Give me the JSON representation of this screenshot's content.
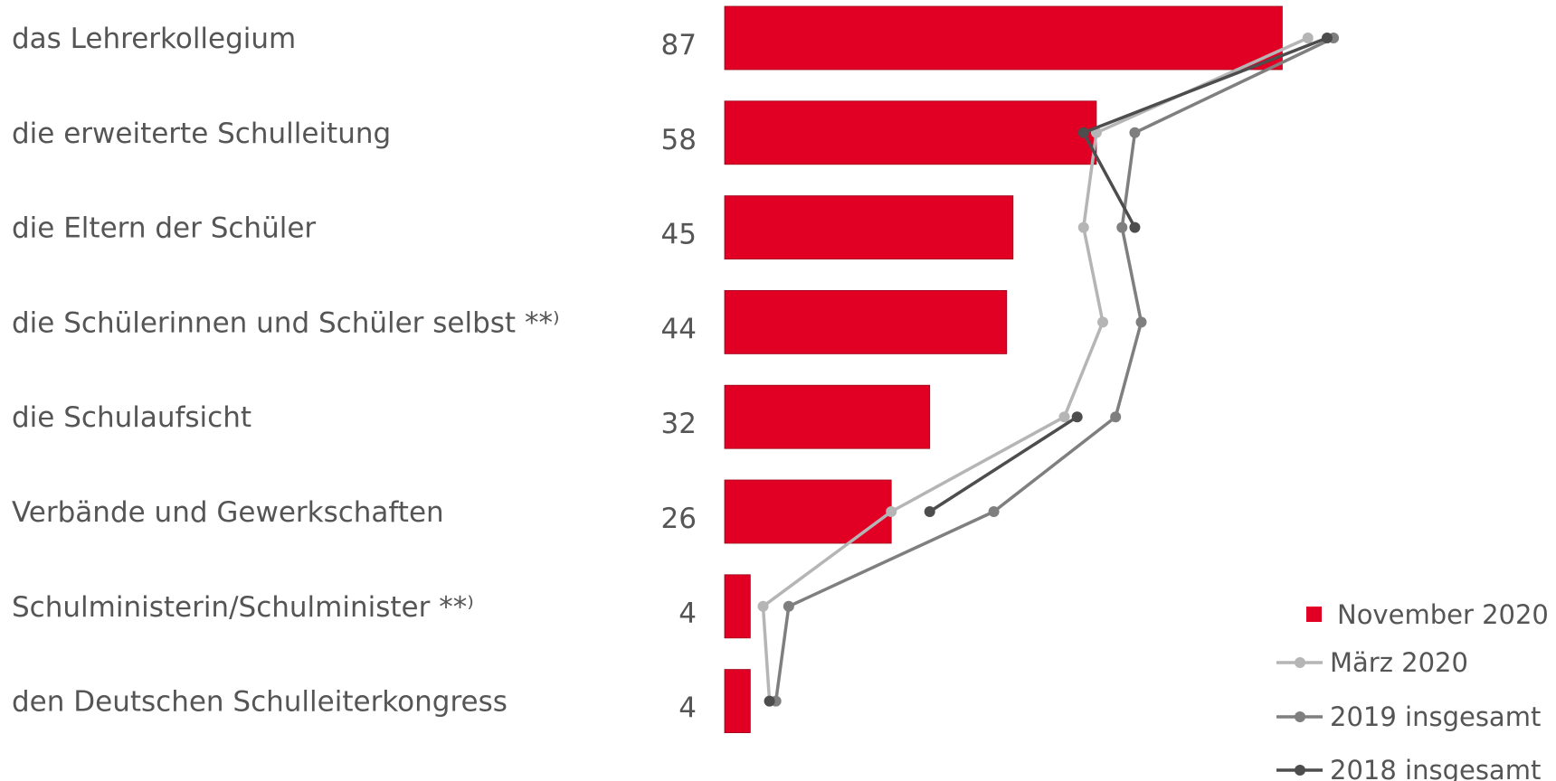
{
  "chart_data": {
    "type": "bar",
    "orientation": "horizontal",
    "categories": [
      "das Lehrerkollegium",
      "die erweiterte Schulleitung",
      "die Eltern der Schüler",
      "die Schülerinnen und Schüler selbst **⁾",
      "die Schulaufsicht",
      "Verbände und Gewerkschaften",
      "Schulministerin/Schulminister **⁾",
      "den Deutschen Schulleiterkongress"
    ],
    "xlim": [
      0,
      100
    ],
    "grid": false,
    "legend_position": "bottom-right",
    "series": [
      {
        "name": "November 2020",
        "kind": "bar",
        "values": [
          87,
          58,
          45,
          44,
          32,
          26,
          4,
          4
        ],
        "color": "#e10024"
      },
      {
        "name": "März 2020",
        "kind": "line",
        "values": [
          91,
          58,
          56,
          59,
          53,
          26,
          6,
          7
        ],
        "color": "#b5b5b5"
      },
      {
        "name": "2019 insgesamt",
        "kind": "line",
        "values": [
          95,
          64,
          62,
          65,
          61,
          42,
          10,
          8
        ],
        "color": "#7f7f7f"
      },
      {
        "name": "2018 insgesamt",
        "kind": "line",
        "values": [
          94,
          56,
          64,
          null,
          55,
          32,
          null,
          7
        ],
        "color": "#4d4d4d"
      }
    ],
    "value_labels": [
      "87",
      "58",
      "45",
      "44",
      "32",
      "26",
      "4",
      "4"
    ],
    "legend": [
      "November 2020",
      "März 2020",
      "2019 insgesamt",
      "2018 insgesamt"
    ]
  }
}
